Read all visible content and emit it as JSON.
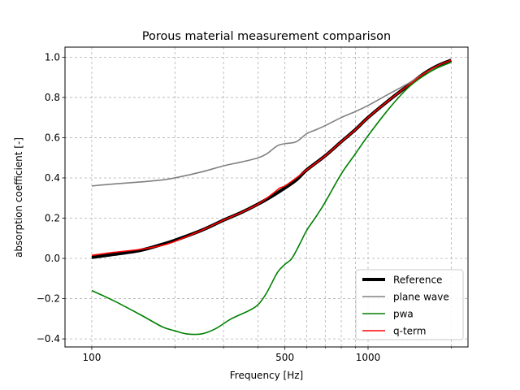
{
  "chart_data": {
    "type": "line",
    "title": "Porous material measurement comparison",
    "xlabel": "Frequency [Hz]",
    "ylabel": "absorption coefficient [-]",
    "x_scale": "log",
    "xlim": [
      80,
      2300
    ],
    "ylim": [
      -0.44,
      1.05
    ],
    "x_ticks": [
      {
        "value": 100,
        "label": "100"
      },
      {
        "value": 500,
        "label": "500"
      },
      {
        "value": 1000,
        "label": "1000"
      }
    ],
    "x_minor_ticks": [
      200,
      300,
      400,
      600,
      700,
      800,
      900,
      2000
    ],
    "y_ticks": [
      {
        "value": -0.4,
        "label": "−0.4"
      },
      {
        "value": -0.2,
        "label": "−0.2"
      },
      {
        "value": 0.0,
        "label": "0.0"
      },
      {
        "value": 0.2,
        "label": "0.2"
      },
      {
        "value": 0.4,
        "label": "0.4"
      },
      {
        "value": 0.6,
        "label": "0.6"
      },
      {
        "value": 0.8,
        "label": "0.8"
      },
      {
        "value": 1.0,
        "label": "1.0"
      }
    ],
    "grid": true,
    "legend_position": "bottom-right",
    "series": [
      {
        "name": "Reference",
        "color": "#000000",
        "linewidth": 4,
        "x": [
          100,
          120,
          150,
          180,
          200,
          250,
          300,
          350,
          400,
          450,
          500,
          550,
          600,
          700,
          800,
          900,
          1000,
          1200,
          1400,
          1600,
          1800,
          2000
        ],
        "y": [
          0.005,
          0.02,
          0.04,
          0.07,
          0.09,
          0.14,
          0.19,
          0.23,
          0.27,
          0.31,
          0.35,
          0.39,
          0.44,
          0.51,
          0.58,
          0.64,
          0.7,
          0.79,
          0.86,
          0.92,
          0.96,
          0.985
        ]
      },
      {
        "name": "plane wave",
        "color": "#808080",
        "linewidth": 1.6,
        "x": [
          100,
          120,
          150,
          180,
          200,
          250,
          300,
          350,
          400,
          430,
          470,
          500,
          550,
          600,
          650,
          700,
          800,
          900,
          1000,
          1200,
          1400,
          1600,
          1800,
          2000
        ],
        "y": [
          0.36,
          0.37,
          0.38,
          0.39,
          0.4,
          0.43,
          0.46,
          0.48,
          0.5,
          0.52,
          0.56,
          0.57,
          0.58,
          0.62,
          0.64,
          0.66,
          0.7,
          0.73,
          0.76,
          0.82,
          0.87,
          0.92,
          0.95,
          0.975
        ]
      },
      {
        "name": "pwa",
        "color": "#008000",
        "linewidth": 1.6,
        "x": [
          100,
          120,
          150,
          180,
          200,
          220,
          250,
          280,
          320,
          370,
          400,
          430,
          470,
          500,
          530,
          570,
          600,
          650,
          700,
          800,
          900,
          1000,
          1200,
          1400,
          1600,
          1800,
          2000
        ],
        "y": [
          -0.16,
          -0.21,
          -0.28,
          -0.34,
          -0.36,
          -0.375,
          -0.375,
          -0.35,
          -0.3,
          -0.26,
          -0.23,
          -0.17,
          -0.07,
          -0.03,
          0.0,
          0.08,
          0.14,
          0.21,
          0.28,
          0.42,
          0.52,
          0.61,
          0.75,
          0.85,
          0.91,
          0.95,
          0.975
        ]
      },
      {
        "name": "q-term",
        "color": "#ff0000",
        "linewidth": 1.6,
        "x": [
          100,
          120,
          150,
          180,
          200,
          250,
          300,
          350,
          400,
          450,
          480,
          500,
          550,
          600,
          700,
          800,
          900,
          1000,
          1200,
          1400,
          1600,
          1800,
          2000
        ],
        "y": [
          0.015,
          0.03,
          0.045,
          0.065,
          0.085,
          0.14,
          0.19,
          0.23,
          0.27,
          0.32,
          0.35,
          0.36,
          0.4,
          0.44,
          0.51,
          0.58,
          0.64,
          0.7,
          0.79,
          0.86,
          0.92,
          0.96,
          0.985
        ]
      }
    ]
  }
}
